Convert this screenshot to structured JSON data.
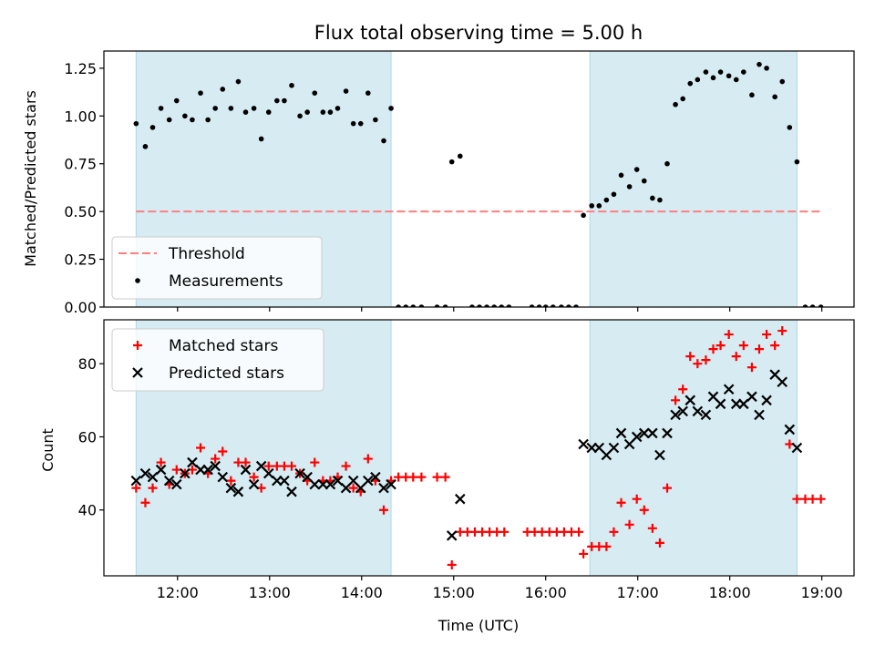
{
  "chart_data": [
    {
      "type": "scatter",
      "title": "Flux total observing time = 5.00 h",
      "xlabel": "",
      "ylabel": "Matched/Predicted stars",
      "xlim": [
        11.2,
        19.35
      ],
      "ylim": [
        0,
        1.34
      ],
      "yticks": [
        0.0,
        0.25,
        0.5,
        0.75,
        1.0,
        1.25
      ],
      "ytick_labels": [
        "0.00",
        "0.25",
        "0.50",
        "0.75",
        "1.00",
        "1.25"
      ],
      "xticks": [
        12,
        13,
        14,
        15,
        16,
        17,
        18,
        19
      ],
      "shaded_ranges": [
        [
          11.55,
          14.32
        ],
        [
          16.48,
          18.73
        ]
      ],
      "shade_color": "#add8e6",
      "threshold": {
        "label": "Threshold",
        "y": 0.5,
        "x_range": [
          11.55,
          19.0
        ],
        "color": "#ff7f7f"
      },
      "legend_position": "lower-left",
      "legend": [
        "Threshold",
        "Measurements"
      ],
      "series": [
        {
          "name": "Measurements",
          "color": "#000000",
          "points": [
            [
              11.55,
              0.96
            ],
            [
              11.65,
              0.84
            ],
            [
              11.73,
              0.94
            ],
            [
              11.82,
              1.04
            ],
            [
              11.91,
              0.98
            ],
            [
              11.99,
              1.08
            ],
            [
              12.08,
              1.0
            ],
            [
              12.16,
              0.98
            ],
            [
              12.25,
              1.12
            ],
            [
              12.33,
              0.98
            ],
            [
              12.41,
              1.04
            ],
            [
              12.49,
              1.14
            ],
            [
              12.58,
              1.04
            ],
            [
              12.66,
              1.18
            ],
            [
              12.74,
              1.02
            ],
            [
              12.83,
              1.04
            ],
            [
              12.91,
              0.88
            ],
            [
              12.99,
              1.02
            ],
            [
              13.08,
              1.08
            ],
            [
              13.16,
              1.08
            ],
            [
              13.24,
              1.16
            ],
            [
              13.33,
              1.0
            ],
            [
              13.41,
              1.02
            ],
            [
              13.49,
              1.12
            ],
            [
              13.58,
              1.02
            ],
            [
              13.66,
              1.02
            ],
            [
              13.74,
              1.04
            ],
            [
              13.83,
              1.13
            ],
            [
              13.91,
              0.96
            ],
            [
              13.99,
              0.96
            ],
            [
              14.07,
              1.12
            ],
            [
              14.15,
              0.98
            ],
            [
              14.24,
              0.87
            ],
            [
              14.32,
              1.04
            ],
            [
              14.4,
              0.0
            ],
            [
              14.48,
              0.0
            ],
            [
              14.56,
              0.0
            ],
            [
              14.65,
              0.0
            ],
            [
              14.82,
              0.0
            ],
            [
              14.91,
              0.0
            ],
            [
              14.98,
              0.76
            ],
            [
              15.07,
              0.79
            ],
            [
              15.2,
              0.0
            ],
            [
              15.28,
              0.0
            ],
            [
              15.36,
              0.0
            ],
            [
              15.44,
              0.0
            ],
            [
              15.52,
              0.0
            ],
            [
              15.6,
              0.0
            ],
            [
              15.85,
              0.0
            ],
            [
              15.93,
              0.0
            ],
            [
              16.0,
              0.0
            ],
            [
              16.08,
              0.0
            ],
            [
              16.17,
              0.0
            ],
            [
              16.25,
              0.0
            ],
            [
              16.33,
              0.0
            ],
            [
              16.41,
              0.48
            ],
            [
              16.5,
              0.53
            ],
            [
              16.58,
              0.53
            ],
            [
              16.66,
              0.56
            ],
            [
              16.74,
              0.59
            ],
            [
              16.82,
              0.69
            ],
            [
              16.91,
              0.63
            ],
            [
              16.99,
              0.72
            ],
            [
              17.07,
              0.66
            ],
            [
              17.16,
              0.57
            ],
            [
              17.24,
              0.56
            ],
            [
              17.32,
              0.75
            ],
            [
              17.41,
              1.06
            ],
            [
              17.49,
              1.09
            ],
            [
              17.57,
              1.17
            ],
            [
              17.65,
              1.19
            ],
            [
              17.74,
              1.23
            ],
            [
              17.82,
              1.2
            ],
            [
              17.9,
              1.23
            ],
            [
              17.99,
              1.21
            ],
            [
              18.07,
              1.19
            ],
            [
              18.15,
              1.23
            ],
            [
              18.24,
              1.11
            ],
            [
              18.32,
              1.27
            ],
            [
              18.4,
              1.25
            ],
            [
              18.49,
              1.1
            ],
            [
              18.57,
              1.18
            ],
            [
              18.65,
              0.94
            ],
            [
              18.73,
              0.76
            ],
            [
              18.82,
              0.0
            ],
            [
              18.9,
              0.0
            ],
            [
              18.99,
              0.0
            ]
          ]
        }
      ]
    },
    {
      "type": "scatter",
      "title": "",
      "xlabel": "Time (UTC)",
      "ylabel": "Count",
      "xlim": [
        11.2,
        19.35
      ],
      "ylim": [
        22,
        92
      ],
      "yticks": [
        40,
        60,
        80
      ],
      "ytick_labels": [
        "40",
        "60",
        "80"
      ],
      "xticks": [
        12,
        13,
        14,
        15,
        16,
        17,
        18,
        19
      ],
      "xtick_labels": [
        "12:00",
        "13:00",
        "14:00",
        "15:00",
        "16:00",
        "17:00",
        "18:00",
        "19:00"
      ],
      "shaded_ranges": [
        [
          11.55,
          14.32
        ],
        [
          16.48,
          18.73
        ]
      ],
      "shade_color": "#add8e6",
      "legend_position": "upper-left",
      "legend": [
        "Matched stars",
        "Predicted stars"
      ],
      "series": [
        {
          "name": "Matched stars",
          "marker": "plus",
          "color": "#ff0000",
          "points": [
            [
              11.55,
              46
            ],
            [
              11.65,
              42
            ],
            [
              11.73,
              46
            ],
            [
              11.82,
              53
            ],
            [
              11.91,
              47
            ],
            [
              11.99,
              51
            ],
            [
              12.08,
              50
            ],
            [
              12.16,
              51
            ],
            [
              12.25,
              57
            ],
            [
              12.33,
              50
            ],
            [
              12.41,
              54
            ],
            [
              12.49,
              56
            ],
            [
              12.58,
              48
            ],
            [
              12.66,
              53
            ],
            [
              12.74,
              53
            ],
            [
              12.83,
              49
            ],
            [
              12.91,
              46
            ],
            [
              12.99,
              52
            ],
            [
              13.08,
              52
            ],
            [
              13.16,
              52
            ],
            [
              13.24,
              52
            ],
            [
              13.33,
              50
            ],
            [
              13.41,
              48
            ],
            [
              13.49,
              53
            ],
            [
              13.58,
              48
            ],
            [
              13.66,
              48
            ],
            [
              13.74,
              49
            ],
            [
              13.83,
              52
            ],
            [
              13.91,
              46
            ],
            [
              13.99,
              45
            ],
            [
              14.07,
              54
            ],
            [
              14.15,
              48
            ],
            [
              14.24,
              40
            ],
            [
              14.32,
              48
            ],
            [
              14.4,
              49
            ],
            [
              14.48,
              49
            ],
            [
              14.56,
              49
            ],
            [
              14.65,
              49
            ],
            [
              14.82,
              49
            ],
            [
              14.91,
              49
            ],
            [
              14.98,
              25
            ],
            [
              15.07,
              34
            ],
            [
              15.15,
              34
            ],
            [
              15.23,
              34
            ],
            [
              15.31,
              34
            ],
            [
              15.39,
              34
            ],
            [
              15.47,
              34
            ],
            [
              15.55,
              34
            ],
            [
              15.8,
              34
            ],
            [
              15.88,
              34
            ],
            [
              15.96,
              34
            ],
            [
              16.04,
              34
            ],
            [
              16.12,
              34
            ],
            [
              16.2,
              34
            ],
            [
              16.28,
              34
            ],
            [
              16.36,
              34
            ],
            [
              16.41,
              28
            ],
            [
              16.5,
              30
            ],
            [
              16.58,
              30
            ],
            [
              16.66,
              30
            ],
            [
              16.74,
              34
            ],
            [
              16.82,
              42
            ],
            [
              16.91,
              36
            ],
            [
              16.99,
              43
            ],
            [
              17.07,
              40
            ],
            [
              17.16,
              35
            ],
            [
              17.24,
              31
            ],
            [
              17.32,
              46
            ],
            [
              17.41,
              70
            ],
            [
              17.49,
              73
            ],
            [
              17.57,
              82
            ],
            [
              17.65,
              80
            ],
            [
              17.74,
              81
            ],
            [
              17.82,
              84
            ],
            [
              17.9,
              85
            ],
            [
              17.99,
              88
            ],
            [
              18.07,
              82
            ],
            [
              18.15,
              85
            ],
            [
              18.24,
              79
            ],
            [
              18.32,
              84
            ],
            [
              18.4,
              88
            ],
            [
              18.49,
              85
            ],
            [
              18.57,
              89
            ],
            [
              18.65,
              58
            ],
            [
              18.73,
              43
            ],
            [
              18.82,
              43
            ],
            [
              18.9,
              43
            ],
            [
              18.99,
              43
            ]
          ]
        },
        {
          "name": "Predicted stars",
          "marker": "x",
          "color": "#000000",
          "points": [
            [
              11.55,
              48
            ],
            [
              11.65,
              50
            ],
            [
              11.73,
              49
            ],
            [
              11.82,
              51
            ],
            [
              11.91,
              48
            ],
            [
              11.99,
              47
            ],
            [
              12.08,
              50
            ],
            [
              12.16,
              53
            ],
            [
              12.25,
              51
            ],
            [
              12.33,
              51
            ],
            [
              12.41,
              52
            ],
            [
              12.49,
              49
            ],
            [
              12.58,
              46
            ],
            [
              12.66,
              45
            ],
            [
              12.74,
              51
            ],
            [
              12.83,
              47
            ],
            [
              12.91,
              52
            ],
            [
              12.99,
              50
            ],
            [
              13.08,
              48
            ],
            [
              13.16,
              48
            ],
            [
              13.24,
              45
            ],
            [
              13.33,
              50
            ],
            [
              13.41,
              49
            ],
            [
              13.49,
              47
            ],
            [
              13.58,
              47
            ],
            [
              13.66,
              47
            ],
            [
              13.74,
              48
            ],
            [
              13.83,
              46
            ],
            [
              13.91,
              48
            ],
            [
              13.99,
              46
            ],
            [
              14.07,
              48
            ],
            [
              14.15,
              49
            ],
            [
              14.24,
              46
            ],
            [
              14.32,
              47
            ],
            [
              14.98,
              33
            ],
            [
              15.07,
              43
            ],
            [
              16.41,
              58
            ],
            [
              16.5,
              57
            ],
            [
              16.58,
              57
            ],
            [
              16.66,
              55
            ],
            [
              16.74,
              57
            ],
            [
              16.82,
              61
            ],
            [
              16.91,
              58
            ],
            [
              16.99,
              60
            ],
            [
              17.07,
              61
            ],
            [
              17.16,
              61
            ],
            [
              17.24,
              55
            ],
            [
              17.32,
              61
            ],
            [
              17.41,
              66
            ],
            [
              17.49,
              67
            ],
            [
              17.57,
              70
            ],
            [
              17.65,
              67
            ],
            [
              17.74,
              66
            ],
            [
              17.82,
              71
            ],
            [
              17.9,
              69
            ],
            [
              17.99,
              73
            ],
            [
              18.07,
              69
            ],
            [
              18.15,
              69
            ],
            [
              18.24,
              71
            ],
            [
              18.32,
              66
            ],
            [
              18.4,
              70
            ],
            [
              18.49,
              77
            ],
            [
              18.57,
              75
            ],
            [
              18.65,
              62
            ],
            [
              18.73,
              57
            ]
          ]
        }
      ]
    }
  ]
}
